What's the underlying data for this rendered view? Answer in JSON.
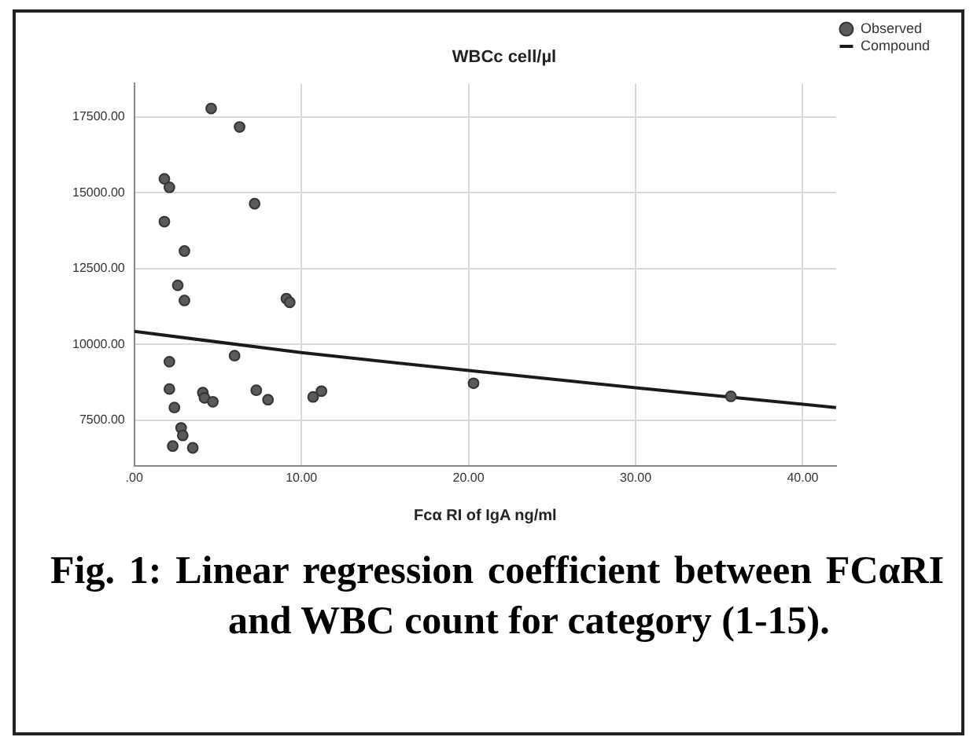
{
  "chart_data": {
    "type": "scatter",
    "title": "WBCc cell/µl",
    "xlabel": "Fcα RI of IgA ng/ml",
    "xlim": [
      0,
      42
    ],
    "xticks": [
      {
        "value": 0,
        "label": ".00"
      },
      {
        "value": 10,
        "label": "10.00"
      },
      {
        "value": 20,
        "label": "20.00"
      },
      {
        "value": 30,
        "label": "30.00"
      },
      {
        "value": 40,
        "label": "40.00"
      }
    ],
    "ylim": [
      6000,
      18600
    ],
    "yticks": [
      {
        "value": 7500,
        "label": "7500.00"
      },
      {
        "value": 10000,
        "label": "10000.00"
      },
      {
        "value": 12500,
        "label": "12500.00"
      },
      {
        "value": 15000,
        "label": "15000.00"
      },
      {
        "value": 17500,
        "label": "17500.00"
      }
    ],
    "grid": true,
    "legend": "top right",
    "series": [
      {
        "name": "Observed",
        "type": "scatter",
        "marker": "circle",
        "color": "#5a5a5a",
        "x": [
          4.6,
          6.3,
          1.8,
          2.1,
          7.2,
          1.8,
          3.0,
          2.6,
          3.0,
          9.1,
          9.3,
          6.0,
          2.1,
          2.1,
          4.1,
          4.2,
          4.7,
          7.3,
          8.0,
          2.4,
          10.7,
          11.2,
          2.8,
          2.9,
          2.3,
          3.5,
          20.3,
          35.7
        ],
        "values": [
          17780,
          17170,
          15460,
          15180,
          14640,
          14050,
          13080,
          11950,
          11450,
          11510,
          11390,
          9630,
          9430,
          8530,
          8410,
          8240,
          8110,
          8490,
          8180,
          7920,
          8270,
          8460,
          7250,
          7000,
          6650,
          6590,
          8720,
          8290
        ]
      },
      {
        "name": "Compound",
        "type": "line",
        "marker": "none",
        "color": "#1a1a1a",
        "line_style": "solid",
        "x": [
          0,
          10,
          20,
          30,
          42
        ],
        "values": [
          10430,
          9730,
          9140,
          8570,
          7920
        ]
      }
    ],
    "annotations": [
      "Fig. 1: Linear regression coefficient between FCαRI and WBC count for category (1-15)."
    ]
  }
}
